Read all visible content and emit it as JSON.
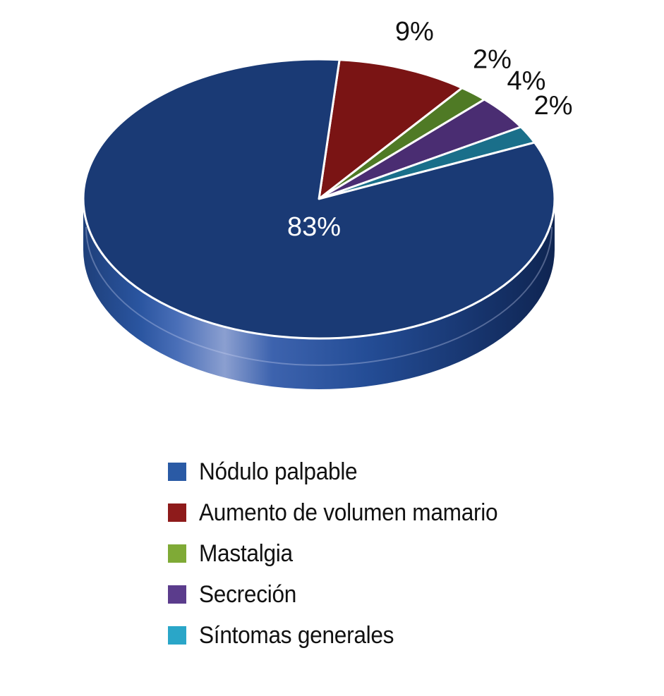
{
  "chart_data": {
    "type": "pie",
    "categories": [
      "Nódulo palpable",
      "Aumento de volumen mamario",
      "Mastalgia",
      "Secreción",
      "Síntomas generales"
    ],
    "values": [
      83,
      9,
      2,
      4,
      2
    ],
    "data_labels": [
      "83%",
      "9%",
      "2%",
      "4%",
      "2%"
    ],
    "colors": [
      "#1a3a75",
      "#7a1414",
      "#4f7a25",
      "#4a2d72",
      "#1a6f8a"
    ],
    "legend_colors": [
      "#2a5aa5",
      "#8e1b1b",
      "#7faa36",
      "#5b3c8c",
      "#2aa6c8"
    ],
    "legend_position": "bottom",
    "style": "3d"
  }
}
